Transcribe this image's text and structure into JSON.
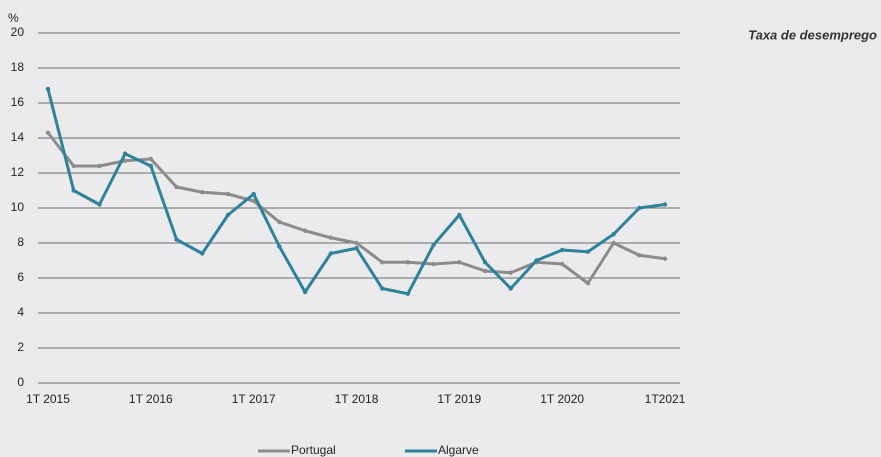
{
  "chart_data": {
    "type": "line",
    "title": "Taxa de desemprego",
    "ylabel": "%",
    "categories": [
      "1T 2015",
      null,
      null,
      null,
      "1T 2016",
      null,
      null,
      null,
      "1T 2017",
      null,
      null,
      null,
      "1T 2018",
      null,
      null,
      null,
      "1T 2019",
      null,
      null,
      null,
      "1T 2020",
      null,
      null,
      null,
      "1T2021"
    ],
    "series": [
      {
        "name": "Portugal",
        "color": "#8c8c8c",
        "values": [
          14.3,
          12.4,
          12.4,
          12.7,
          12.8,
          11.2,
          10.9,
          10.8,
          10.4,
          9.2,
          8.7,
          8.3,
          8.0,
          6.9,
          6.9,
          6.8,
          6.9,
          6.4,
          6.3,
          6.9,
          6.8,
          5.7,
          8.0,
          7.3,
          7.1
        ]
      },
      {
        "name": "Algarve",
        "color": "#2e8299",
        "values": [
          16.8,
          11.0,
          10.2,
          13.1,
          12.4,
          8.2,
          7.4,
          9.6,
          10.8,
          7.8,
          5.2,
          7.4,
          7.7,
          5.4,
          5.1,
          7.9,
          9.6,
          6.9,
          5.4,
          7.0,
          7.6,
          7.5,
          8.5,
          10.0,
          10.2
        ]
      }
    ],
    "ylim": [
      0,
      20
    ],
    "yticks": [
      0,
      2,
      4,
      6,
      8,
      10,
      12,
      14,
      16,
      18,
      20
    ],
    "grid": true,
    "legend": "bottom"
  }
}
